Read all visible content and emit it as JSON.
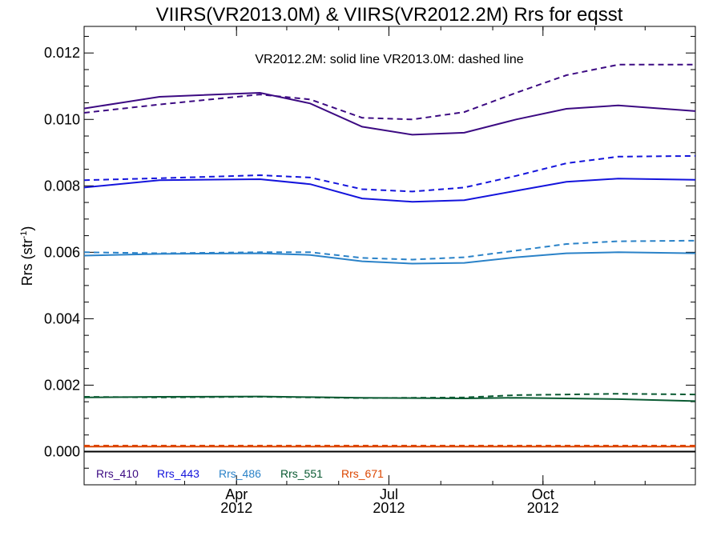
{
  "chart_data": {
    "type": "line",
    "title": "VIIRS(VR2013.0M) & VIIRS(VR2012.2M)  Rrs for eqsst",
    "annotation": "VR2012.2M: solid line   VR2013.0M: dashed line",
    "ylabel": {
      "main": "Rrs (str",
      "sup": "-1",
      "close": ")"
    },
    "xlabel": "",
    "xlim": [
      "2012-01-01",
      "2012-12-31"
    ],
    "ylim": [
      -0.001,
      0.0128
    ],
    "yticks": [
      0.0,
      0.002,
      0.004,
      0.006,
      0.008,
      0.01,
      0.012
    ],
    "ytick_labels": [
      "0.000",
      "0.002",
      "0.004",
      "0.006",
      "0.008",
      "0.010",
      "0.012"
    ],
    "xticks": [
      {
        "date": "2012-04-01",
        "month": "Apr",
        "year": "2012"
      },
      {
        "date": "2012-07-01",
        "month": "Jul",
        "year": "2012"
      },
      {
        "date": "2012-10-01",
        "month": "Oct",
        "year": "2012"
      }
    ],
    "grid": false,
    "legend_position": "bottom-left",
    "x": [
      "2012-01-01",
      "2012-02-15",
      "2012-04-15",
      "2012-05-15",
      "2012-06-15",
      "2012-07-15",
      "2012-08-15",
      "2012-09-15",
      "2012-10-15",
      "2012-11-15",
      "2012-12-31"
    ],
    "series": [
      {
        "name": "Rrs_410",
        "color": "#3c0a82",
        "solid": [
          0.01033,
          0.01068,
          0.0108,
          0.01048,
          0.00978,
          0.00954,
          0.0096,
          0.01,
          0.01032,
          0.01042,
          0.01025
        ],
        "dashed": [
          0.0102,
          0.01045,
          0.01075,
          0.0106,
          0.01005,
          0.01,
          0.01022,
          0.0108,
          0.01133,
          0.01165,
          0.01165
        ]
      },
      {
        "name": "Rrs_443",
        "color": "#1414dc",
        "solid": [
          0.00795,
          0.00817,
          0.0082,
          0.00805,
          0.00762,
          0.00752,
          0.00757,
          0.00785,
          0.00812,
          0.00822,
          0.00818
        ],
        "dashed": [
          0.00817,
          0.00823,
          0.00832,
          0.00825,
          0.0079,
          0.00783,
          0.00795,
          0.0083,
          0.00868,
          0.00888,
          0.0089
        ]
      },
      {
        "name": "Rrs_486",
        "color": "#2a82c8",
        "solid": [
          0.0059,
          0.00595,
          0.00597,
          0.00592,
          0.00573,
          0.00566,
          0.00568,
          0.00585,
          0.00597,
          0.006,
          0.00597
        ],
        "dashed": [
          0.006,
          0.00597,
          0.006,
          0.006,
          0.00583,
          0.00578,
          0.00585,
          0.00605,
          0.00625,
          0.00633,
          0.00635
        ]
      },
      {
        "name": "Rrs_551",
        "color": "#0a5a32",
        "solid": [
          0.00163,
          0.00165,
          0.00166,
          0.00164,
          0.00162,
          0.00161,
          0.0016,
          0.00162,
          0.0016,
          0.00158,
          0.00152
        ],
        "dashed": [
          0.00165,
          0.00163,
          0.00165,
          0.00163,
          0.00161,
          0.00162,
          0.00163,
          0.0017,
          0.00172,
          0.00174,
          0.00172
        ]
      },
      {
        "name": "Rrs_671",
        "color": "#dc4600",
        "solid": [
          0.00015,
          0.00015,
          0.00015,
          0.00015,
          0.00015,
          0.00015,
          0.00015,
          0.00015,
          0.00015,
          0.00015,
          0.00015
        ],
        "dashed": [
          0.00018,
          0.00018,
          0.00018,
          0.00018,
          0.00018,
          0.00018,
          0.00018,
          0.00018,
          0.00018,
          0.00018,
          0.00018
        ]
      }
    ],
    "zero_line": {
      "value": 0.0,
      "color": "#000000"
    }
  }
}
